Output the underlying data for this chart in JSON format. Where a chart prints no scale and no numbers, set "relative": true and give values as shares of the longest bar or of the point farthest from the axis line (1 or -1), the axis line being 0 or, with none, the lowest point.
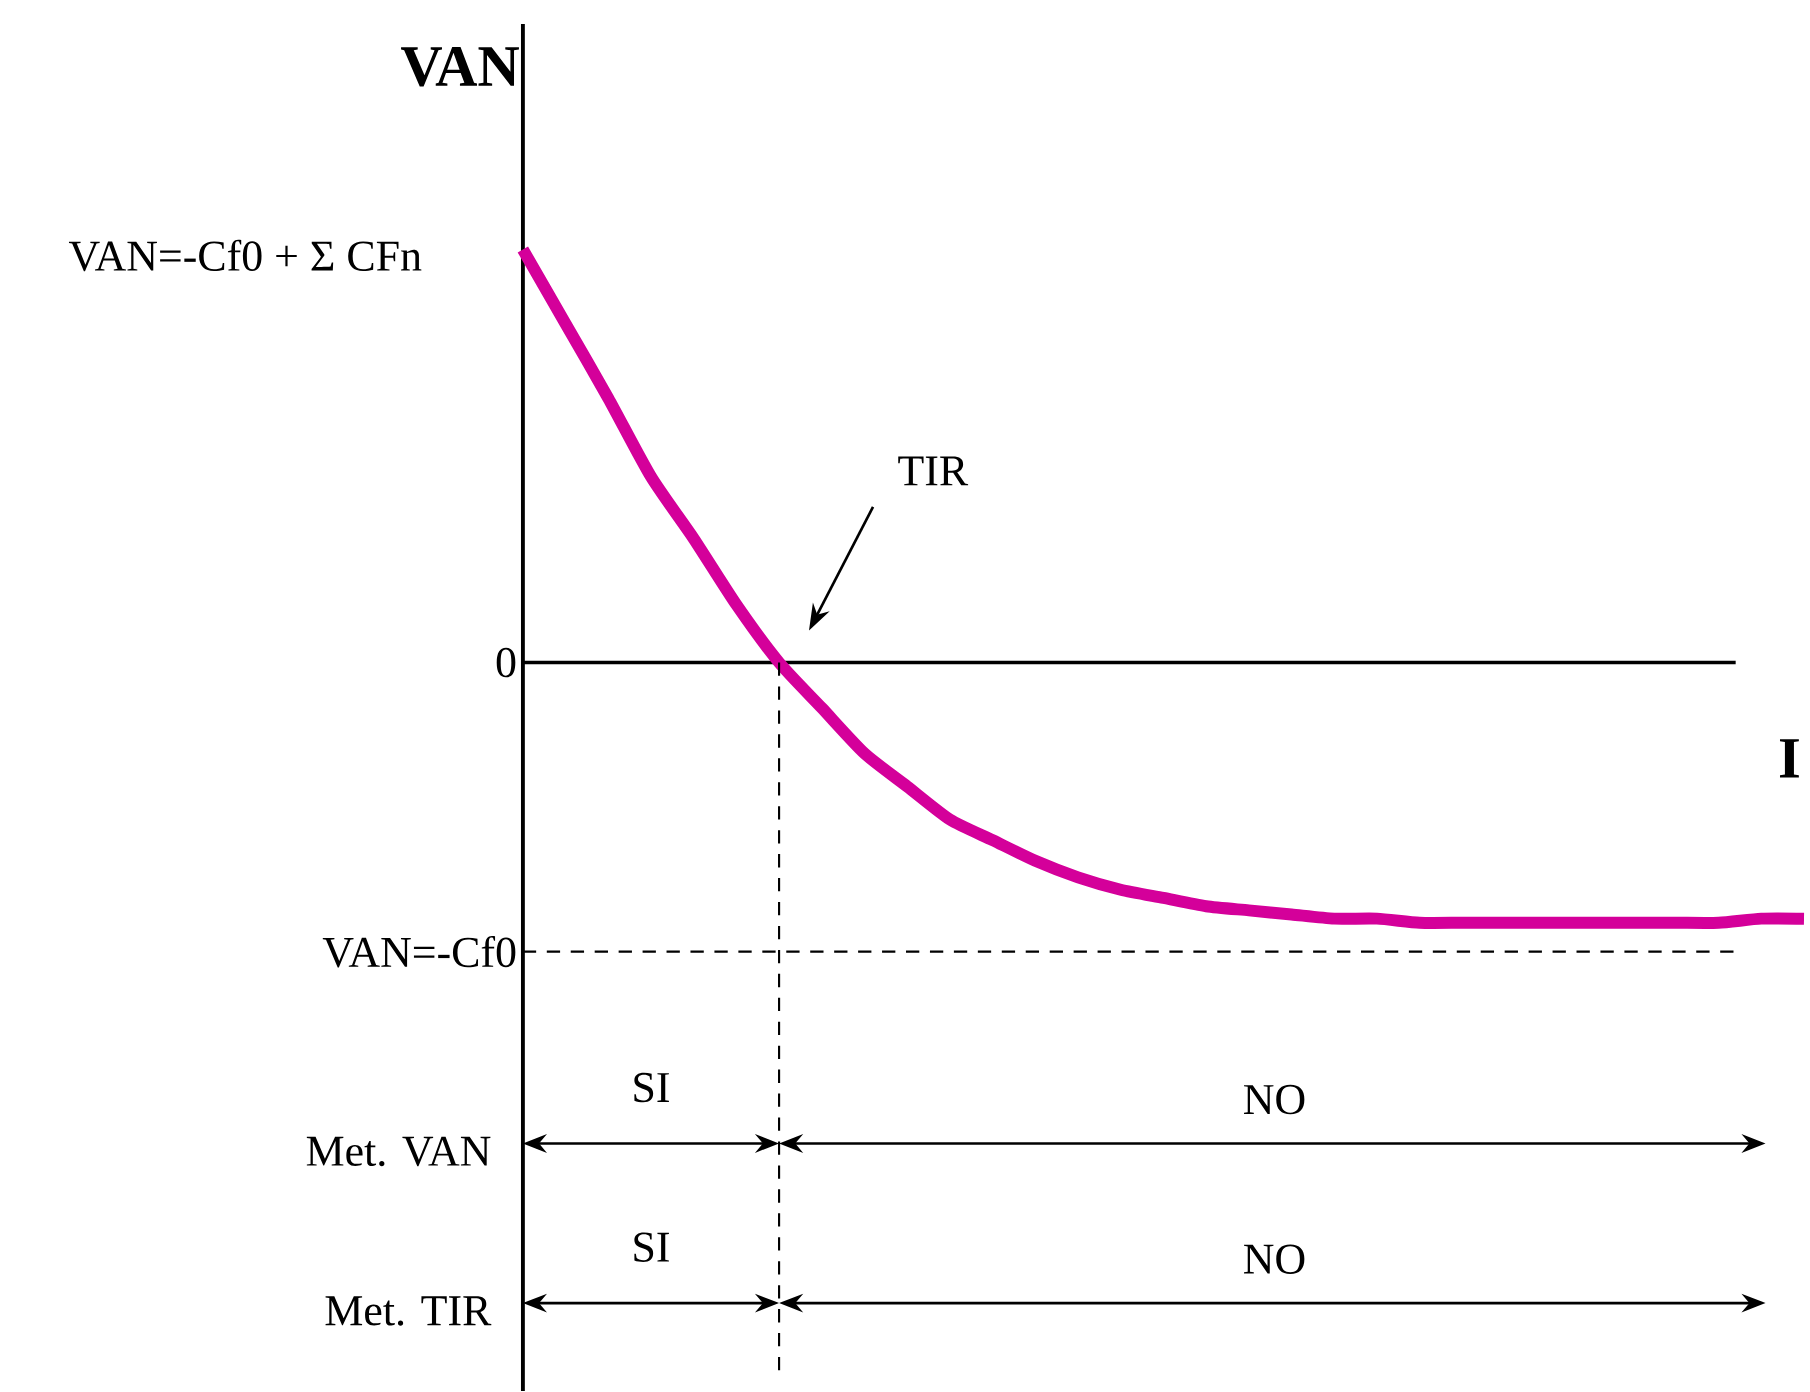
{
  "chart_data": {
    "type": "line",
    "relative": true,
    "xlabel": "I",
    "ylabel": "VAN",
    "categories": [
      null,
      null,
      null,
      null,
      null,
      null,
      null,
      null,
      null,
      null,
      null,
      null,
      null,
      null,
      null,
      null,
      null,
      null,
      null,
      null,
      null,
      null,
      null,
      null,
      null,
      null,
      null,
      null,
      null,
      null,
      null
    ],
    "series": [
      {
        "color": "#d4009a",
        "values": [
          1.0,
          0.82,
          0.64,
          0.45,
          0.3,
          0.14,
          0,
          -0.11,
          -0.22,
          -0.3,
          -0.38,
          -0.43,
          -0.48,
          -0.52,
          -0.55,
          -0.57,
          -0.59,
          -0.6,
          -0.61,
          -0.62,
          -0.62,
          -0.63,
          -0.63,
          -0.63,
          -0.63,
          -0.63,
          -0.63,
          -0.63,
          -0.63,
          -0.62,
          -0.62
        ]
      }
    ],
    "ref_lines": [
      {
        "axis": "y",
        "value": 0,
        "label": "0",
        "line_style": "solid"
      },
      {
        "axis": "y",
        "value": -0.7,
        "label": "VAN=-Cf0",
        "line_style": "dashed"
      }
    ],
    "annotations": [
      "VAN=-Cf0 + Σ CFn",
      "TIR",
      "Met. VAN",
      "SI",
      "NO",
      "Met. TIR",
      "SI",
      "NO"
    ],
    "marker": "none",
    "line_style": "solid"
  }
}
